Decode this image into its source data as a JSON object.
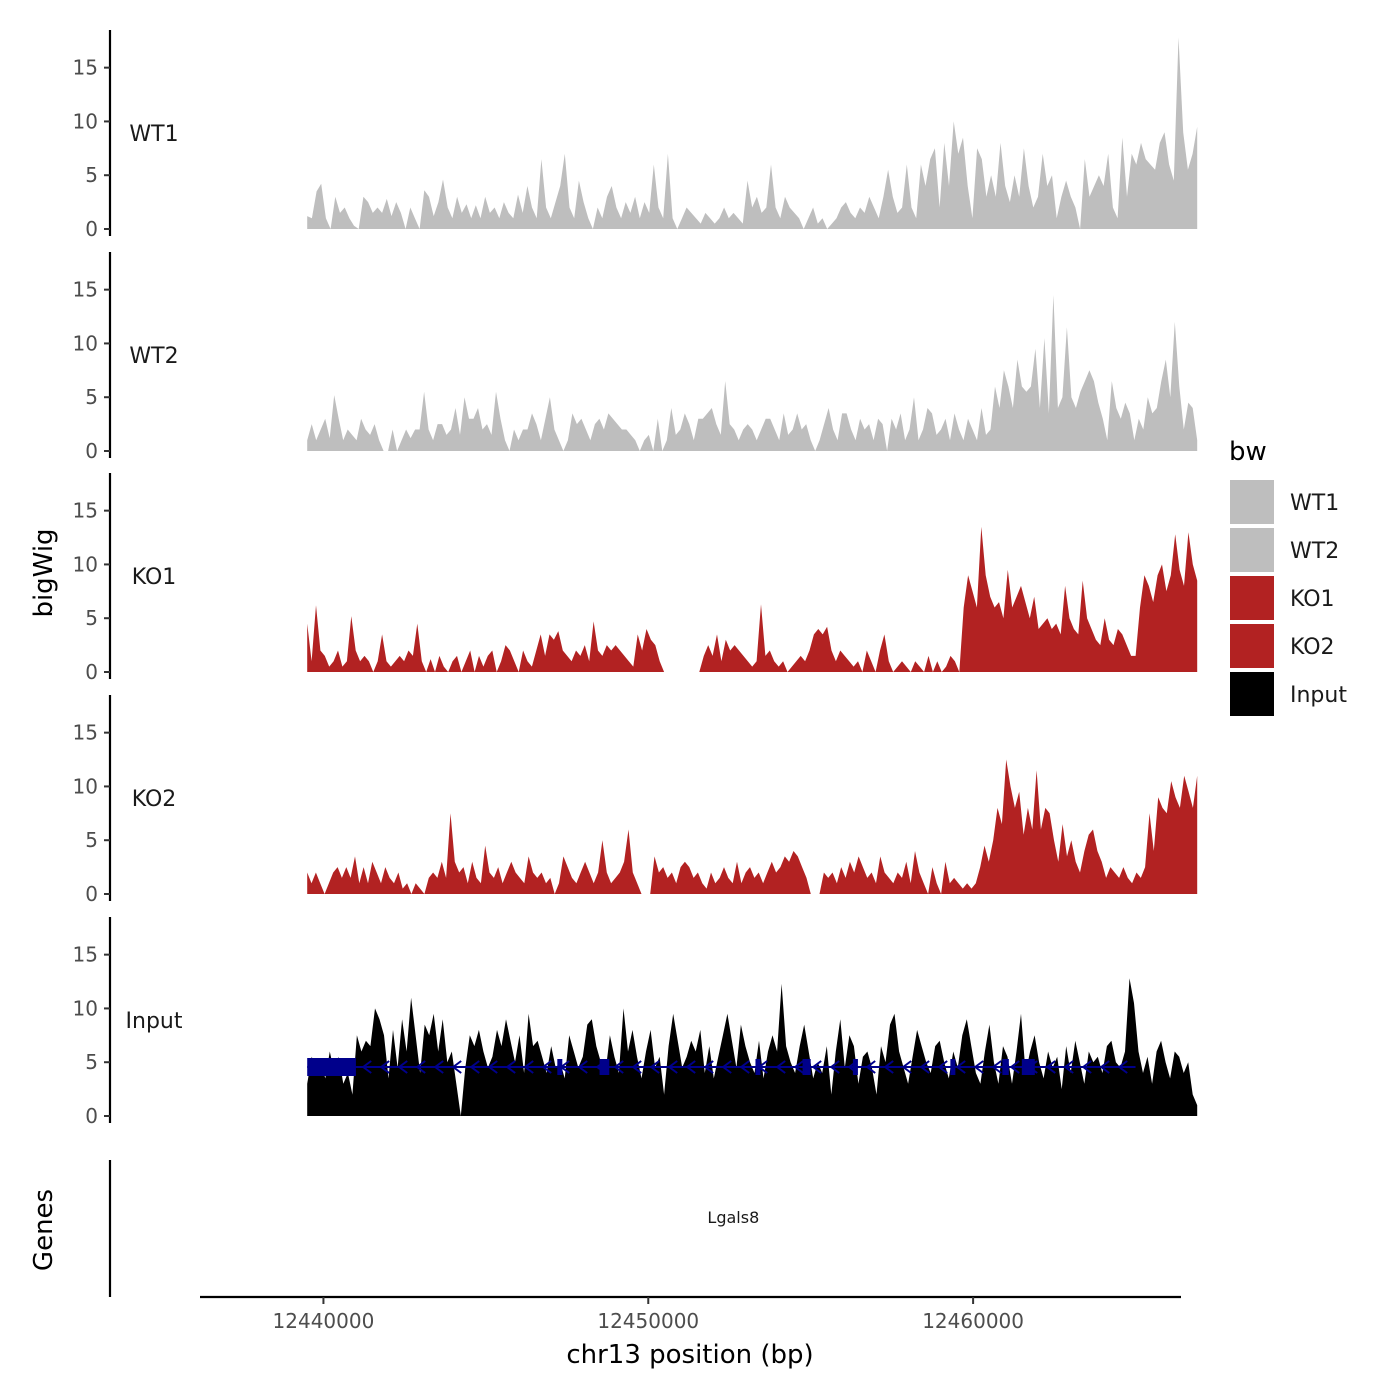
{
  "chart_data": {
    "type": "area",
    "ylabel": "bigWig",
    "xlabel": "chr13 position (bp)",
    "genes_label": "Genes",
    "xlim": [
      12436200,
      12466400
    ],
    "ylim": [
      0,
      18.5
    ],
    "x_ticks": [
      12440000,
      12450000,
      12460000
    ],
    "x_tick_labels": [
      "12440000",
      "12450000",
      "12460000"
    ],
    "y_ticks": [
      0,
      5,
      10,
      15
    ],
    "y_tick_labels": [
      "0",
      "5",
      "10",
      "15"
    ],
    "legend": {
      "title": "bw",
      "entries": [
        {
          "label": "WT1",
          "color": "#bebebe"
        },
        {
          "label": "WT2",
          "color": "#bebebe"
        },
        {
          "label": "KO1",
          "color": "#b22222"
        },
        {
          "label": "KO2",
          "color": "#b22222"
        },
        {
          "label": "Input",
          "color": "#000000"
        }
      ]
    },
    "coverage_x": [
      12439500,
      12466900
    ],
    "series": [
      {
        "name": "WT1",
        "color": "#bebebe",
        "values": [
          1.2,
          1.0,
          3.5,
          4.2,
          1.0,
          0,
          3.0,
          1.5,
          2.0,
          1.0,
          0.3,
          0,
          3.0,
          2.5,
          1.5,
          2.0,
          1.5,
          2.8,
          1.2,
          2.5,
          1.5,
          0,
          2.0,
          1.0,
          0,
          3.6,
          3.0,
          1.2,
          2.5,
          4.6,
          2.0,
          1.0,
          3.0,
          1.5,
          2.3,
          1.0,
          2.2,
          1.0,
          3.0,
          1.5,
          2.0,
          1.0,
          2.5,
          1.5,
          1.0,
          3.2,
          1.5,
          4.0,
          2.0,
          1.0,
          6.5,
          2.0,
          1.0,
          2.5,
          4.0,
          7.0,
          2.0,
          1.0,
          4.5,
          2.5,
          1.0,
          0,
          2.0,
          1.0,
          3.0,
          4.0,
          2.0,
          1.0,
          2.5,
          1.5,
          3.0,
          1.0,
          2.5,
          1.5,
          6.0,
          2.0,
          1.0,
          7.0,
          1.0,
          0,
          1.0,
          2.0,
          1.5,
          1.0,
          0.5,
          1.5,
          1.0,
          0.5,
          1.0,
          2.0,
          1.0,
          1.5,
          1.0,
          0.5,
          4.5,
          2.0,
          3.0,
          1.5,
          2.0,
          6.0,
          2.0,
          1.0,
          3.0,
          2.0,
          1.5,
          1.0,
          0,
          1.0,
          2.0,
          0.5,
          1.0,
          0,
          0.5,
          1.0,
          2.0,
          2.5,
          1.5,
          1.0,
          2.0,
          1.5,
          3.0,
          2.0,
          1.0,
          3.0,
          5.5,
          3.0,
          1.5,
          2.0,
          6.0,
          2.0,
          1.0,
          6.0,
          4.0,
          6.5,
          7.5,
          2.0,
          8.0,
          4.0,
          10.0,
          7.0,
          8.5,
          4.0,
          1.0,
          7.5,
          6.5,
          3.0,
          5.0,
          3.0,
          8.0,
          4.0,
          2.5,
          5.0,
          3.0,
          7.5,
          4.0,
          2.0,
          3.0,
          7.0,
          4.0,
          5.0,
          1.0,
          3.0,
          4.5,
          3.0,
          2.0,
          0,
          6.5,
          3.0,
          4.0,
          5.0,
          4.0,
          7.0,
          2.0,
          1.0,
          8.5,
          3.0,
          7.0,
          6.0,
          8.0,
          6.5,
          6.0,
          5.5,
          8.0,
          9.0,
          6.0,
          4.5,
          17.8,
          9.0,
          5.5,
          7.0,
          9.5
        ]
      },
      {
        "name": "WT2",
        "color": "#bebebe",
        "values": [
          1.0,
          2.5,
          1.0,
          2.0,
          3.0,
          1.2,
          5.2,
          3.0,
          1.0,
          2.0,
          1.5,
          1.0,
          3.0,
          2.0,
          1.5,
          2.5,
          1.0,
          0,
          0,
          2.0,
          0,
          1.0,
          2.0,
          1.2,
          2.0,
          2.0,
          5.5,
          2.0,
          1.0,
          2.5,
          2.5,
          1.5,
          2.0,
          4.0,
          1.5,
          5.0,
          3.0,
          3.0,
          4.0,
          2.0,
          2.5,
          1.5,
          5.5,
          3.0,
          1.0,
          0,
          2.0,
          1.0,
          2.0,
          2.0,
          3.5,
          2.5,
          1.0,
          3.0,
          5.0,
          2.0,
          1.0,
          0,
          1.0,
          3.5,
          2.5,
          3.0,
          2.0,
          1.0,
          2.5,
          3.0,
          2.0,
          3.5,
          3.0,
          2.5,
          2.0,
          2.0,
          1.5,
          1.0,
          0,
          1.0,
          1.5,
          0,
          3.0,
          0,
          1.0,
          4.0,
          1.5,
          2.0,
          3.5,
          2.5,
          1.0,
          3.0,
          3.0,
          3.5,
          4.0,
          2.5,
          1.5,
          6.5,
          2.5,
          2.0,
          1.0,
          2.0,
          2.5,
          2.0,
          1.0,
          2.0,
          3.0,
          3.0,
          2.0,
          1.0,
          3.5,
          1.5,
          2.0,
          3.5,
          2.0,
          2.5,
          1.0,
          0,
          1.0,
          2.5,
          4.0,
          2.0,
          1.0,
          3.5,
          3.5,
          2.0,
          1.0,
          3.0,
          2.0,
          2.5,
          1.0,
          3.0,
          2.5,
          0,
          3.0,
          2.0,
          3.5,
          1.0,
          2.0,
          5.0,
          1.0,
          2.0,
          4.0,
          3.5,
          1.5,
          2.0,
          3.0,
          1.0,
          3.5,
          2.0,
          1.0,
          3.0,
          2.0,
          1.0,
          4.0,
          1.5,
          2.0,
          6.0,
          4.0,
          7.5,
          6.0,
          4.0,
          8.5,
          6.0,
          5.5,
          6.0,
          9.5,
          4.0,
          10.5,
          3.5,
          14.5,
          4.0,
          5.0,
          11.5,
          5.0,
          4.0,
          5.5,
          6.5,
          7.5,
          6.5,
          4.5,
          3.0,
          1.0,
          6.5,
          4.0,
          3.0,
          4.5,
          3.5,
          1.0,
          3.0,
          2.0,
          5.0,
          3.5,
          4.0,
          6.5,
          8.5,
          5.0,
          12.0,
          6.0,
          2.0,
          4.5,
          4.0,
          1.0
        ]
      },
      {
        "name": "KO1",
        "color": "#b22222",
        "values": [
          4.5,
          1.0,
          6.2,
          2.0,
          1.5,
          0.5,
          1.0,
          2.0,
          0.5,
          1.0,
          5.2,
          2.0,
          1.0,
          1.5,
          1.0,
          0,
          1.0,
          3.5,
          1.0,
          0.5,
          1.0,
          1.5,
          1.0,
          2.0,
          1.5,
          4.5,
          1.0,
          0,
          1.2,
          0,
          1.5,
          0.5,
          0,
          1.0,
          1.5,
          0,
          1.0,
          2.0,
          0,
          1.5,
          0.5,
          1.5,
          2.0,
          0,
          1.0,
          2.5,
          2.0,
          1.0,
          0,
          2.0,
          1.0,
          0.5,
          2.0,
          3.5,
          1.5,
          3.5,
          3.0,
          3.8,
          2.0,
          1.5,
          1.0,
          2.0,
          1.5,
          2.5,
          1.0,
          4.7,
          2.0,
          1.5,
          2.5,
          2.0,
          2.5,
          2.0,
          1.5,
          1.0,
          0.5,
          3.5,
          2.0,
          4.0,
          3.0,
          2.5,
          1.0,
          0,
          null,
          null,
          null,
          null,
          null,
          null,
          null,
          0,
          1.5,
          2.5,
          1.5,
          3.5,
          1.0,
          3.0,
          2.0,
          2.5,
          2.0,
          1.5,
          1.0,
          0.5,
          1.0,
          6.3,
          1.5,
          2.0,
          1.0,
          0.5,
          1.0,
          0,
          0.5,
          1.0,
          1.5,
          1.0,
          2.0,
          3.5,
          4.0,
          3.5,
          4.2,
          2.0,
          1.0,
          2.0,
          1.5,
          1.0,
          0.5,
          1.0,
          0,
          2.0,
          1.0,
          0,
          2.0,
          3.5,
          1.0,
          0,
          0.5,
          1.0,
          0.5,
          0,
          1.0,
          0.5,
          0,
          1.5,
          0,
          1.0,
          0,
          0.5,
          1.5,
          1.0,
          0,
          6.0,
          9.0,
          7.5,
          6.0,
          13.5,
          9.0,
          7.0,
          6.0,
          6.5,
          5.0,
          9.5,
          6.0,
          7.0,
          8.0,
          6.5,
          5.0,
          7.0,
          4.0,
          4.5,
          5.0,
          4.0,
          4.5,
          3.5,
          8.0,
          5.0,
          4.0,
          3.5,
          8.5,
          5.0,
          4.0,
          3.0,
          2.5,
          5.0,
          3.0,
          2.5,
          4.0,
          3.5,
          2.5,
          1.5,
          1.5,
          6.0,
          9.0,
          8.0,
          6.5,
          9.0,
          10.0,
          7.5,
          9.0,
          12.8,
          9.5,
          8.0,
          13.0,
          10.0,
          8.5
        ]
      },
      {
        "name": "KO2",
        "color": "#b22222",
        "values": [
          2.0,
          1.0,
          2.0,
          1.0,
          0,
          1.0,
          2.0,
          2.5,
          1.5,
          2.5,
          1.5,
          3.5,
          1.0,
          2.5,
          1.0,
          3.0,
          2.0,
          1.0,
          2.5,
          1.5,
          1.0,
          2.0,
          0.5,
          1.0,
          0,
          1.0,
          0.5,
          0,
          1.5,
          2.0,
          1.5,
          3.0,
          1.5,
          7.5,
          3.0,
          2.0,
          2.5,
          1.0,
          3.0,
          1.5,
          1.0,
          4.5,
          2.0,
          1.5,
          2.5,
          1.0,
          2.0,
          3.0,
          2.0,
          1.5,
          1.0,
          3.5,
          2.0,
          1.5,
          2.0,
          1.0,
          1.5,
          0,
          1.0,
          3.5,
          2.5,
          1.5,
          1.0,
          2.0,
          3.0,
          2.0,
          1.0,
          2.0,
          5.0,
          2.0,
          1.0,
          1.5,
          2.0,
          3.0,
          6.0,
          2.0,
          1.0,
          0,
          null,
          0,
          3.5,
          2.0,
          2.5,
          1.5,
          2.0,
          1.0,
          2.5,
          3.0,
          2.5,
          1.5,
          2.0,
          1.0,
          0.5,
          2.0,
          1.0,
          1.5,
          2.5,
          1.5,
          1.0,
          3.0,
          1.0,
          2.0,
          2.5,
          1.5,
          2.0,
          1.0,
          2.0,
          3.0,
          2.0,
          2.5,
          3.5,
          3.0,
          4.0,
          3.5,
          2.5,
          1.5,
          0,
          null,
          0,
          2.0,
          1.5,
          2.0,
          1.0,
          2.5,
          1.5,
          3.0,
          2.0,
          3.5,
          2.5,
          1.5,
          2.0,
          1.0,
          3.5,
          2.0,
          1.5,
          1.0,
          2.0,
          1.5,
          3.0,
          1.0,
          4.0,
          2.0,
          1.0,
          0,
          2.5,
          1.0,
          0,
          3.0,
          1.0,
          1.5,
          1.0,
          0.5,
          1.0,
          0.5,
          1.0,
          2.5,
          4.5,
          3.0,
          5.0,
          8.0,
          6.5,
          12.5,
          10.0,
          8.0,
          9.5,
          5.5,
          8.0,
          6.0,
          11.5,
          6.0,
          8.0,
          7.5,
          5.0,
          3.0,
          6.5,
          3.5,
          5.0,
          3.0,
          2.0,
          4.0,
          5.5,
          6.0,
          4.0,
          3.0,
          1.5,
          2.5,
          2.0,
          1.5,
          2.5,
          1.5,
          1.0,
          2.0,
          1.5,
          2.5,
          7.5,
          4.0,
          9.0,
          8.0,
          7.5,
          10.5,
          9.0,
          8.0,
          11.0,
          9.5,
          8.0,
          11.0
        ]
      },
      {
        "name": "Input",
        "color": "#000000",
        "values": [
          3.0,
          5.5,
          4.5,
          5.0,
          3.5,
          6.0,
          4.0,
          5.5,
          3.0,
          4.0,
          2.0,
          7.5,
          6.0,
          7.0,
          6.5,
          10.0,
          9.0,
          7.5,
          3.5,
          8.0,
          4.5,
          9.0,
          6.0,
          11.0,
          7.5,
          4.0,
          8.5,
          7.5,
          9.5,
          6.0,
          9.0,
          5.0,
          6.0,
          3.0,
          0,
          4.5,
          7.5,
          6.5,
          8.0,
          6.0,
          4.5,
          5.5,
          8.0,
          6.5,
          9.0,
          7.0,
          5.0,
          7.5,
          4.0,
          9.5,
          6.5,
          7.0,
          5.5,
          4.0,
          6.5,
          4.5,
          5.0,
          3.5,
          7.5,
          6.0,
          4.5,
          5.5,
          8.5,
          9.0,
          6.5,
          5.0,
          4.0,
          7.5,
          5.5,
          4.0,
          10.0,
          6.0,
          8.0,
          5.5,
          3.5,
          6.0,
          8.0,
          4.5,
          5.5,
          2.0,
          6.5,
          9.5,
          7.0,
          4.5,
          5.5,
          7.0,
          6.0,
          8.0,
          4.0,
          6.5,
          3.5,
          5.5,
          7.5,
          9.5,
          7.0,
          4.5,
          8.5,
          6.5,
          5.0,
          4.0,
          7.0,
          3.5,
          6.0,
          7.5,
          6.0,
          12.3,
          6.5,
          5.0,
          4.0,
          6.5,
          8.5,
          6.0,
          3.5,
          5.0,
          4.0,
          6.5,
          2.0,
          6.0,
          9.0,
          4.5,
          7.5,
          6.5,
          3.0,
          5.5,
          6.0,
          4.5,
          2.0,
          6.5,
          5.0,
          8.5,
          9.5,
          6.0,
          4.5,
          3.0,
          5.5,
          8.0,
          6.5,
          5.0,
          4.0,
          6.5,
          7.0,
          5.0,
          3.5,
          6.0,
          4.5,
          7.5,
          9.0,
          6.5,
          4.0,
          3.0,
          6.0,
          8.5,
          5.0,
          3.0,
          6.5,
          5.5,
          3.0,
          6.0,
          9.5,
          4.0,
          6.0,
          7.5,
          5.0,
          3.5,
          6.0,
          4.5,
          5.5,
          2.5,
          6.5,
          4.0,
          7.0,
          5.0,
          3.0,
          6.0,
          5.0,
          5.5,
          4.0,
          6.5,
          7.0,
          5.0,
          4.5,
          6.0,
          12.8,
          10.5,
          6.0,
          4.0,
          5.5,
          3.0,
          6.0,
          7.0,
          5.0,
          3.5,
          6.0,
          5.5,
          4.0,
          5.0,
          2.0,
          1.0
        ]
      }
    ],
    "gene": {
      "name": "Lgals8",
      "start": 12439500,
      "end": 12465000,
      "strand": "-",
      "color": "#00008b",
      "exons": [
        [
          12439500,
          12441000
        ],
        [
          12447200,
          12447350
        ],
        [
          12448500,
          12448800
        ],
        [
          12453300,
          12453450
        ],
        [
          12454750,
          12455000
        ],
        [
          12456300,
          12456450
        ],
        [
          12459300,
          12459450
        ],
        [
          12460900,
          12461100
        ],
        [
          12461500,
          12461900
        ]
      ]
    }
  }
}
